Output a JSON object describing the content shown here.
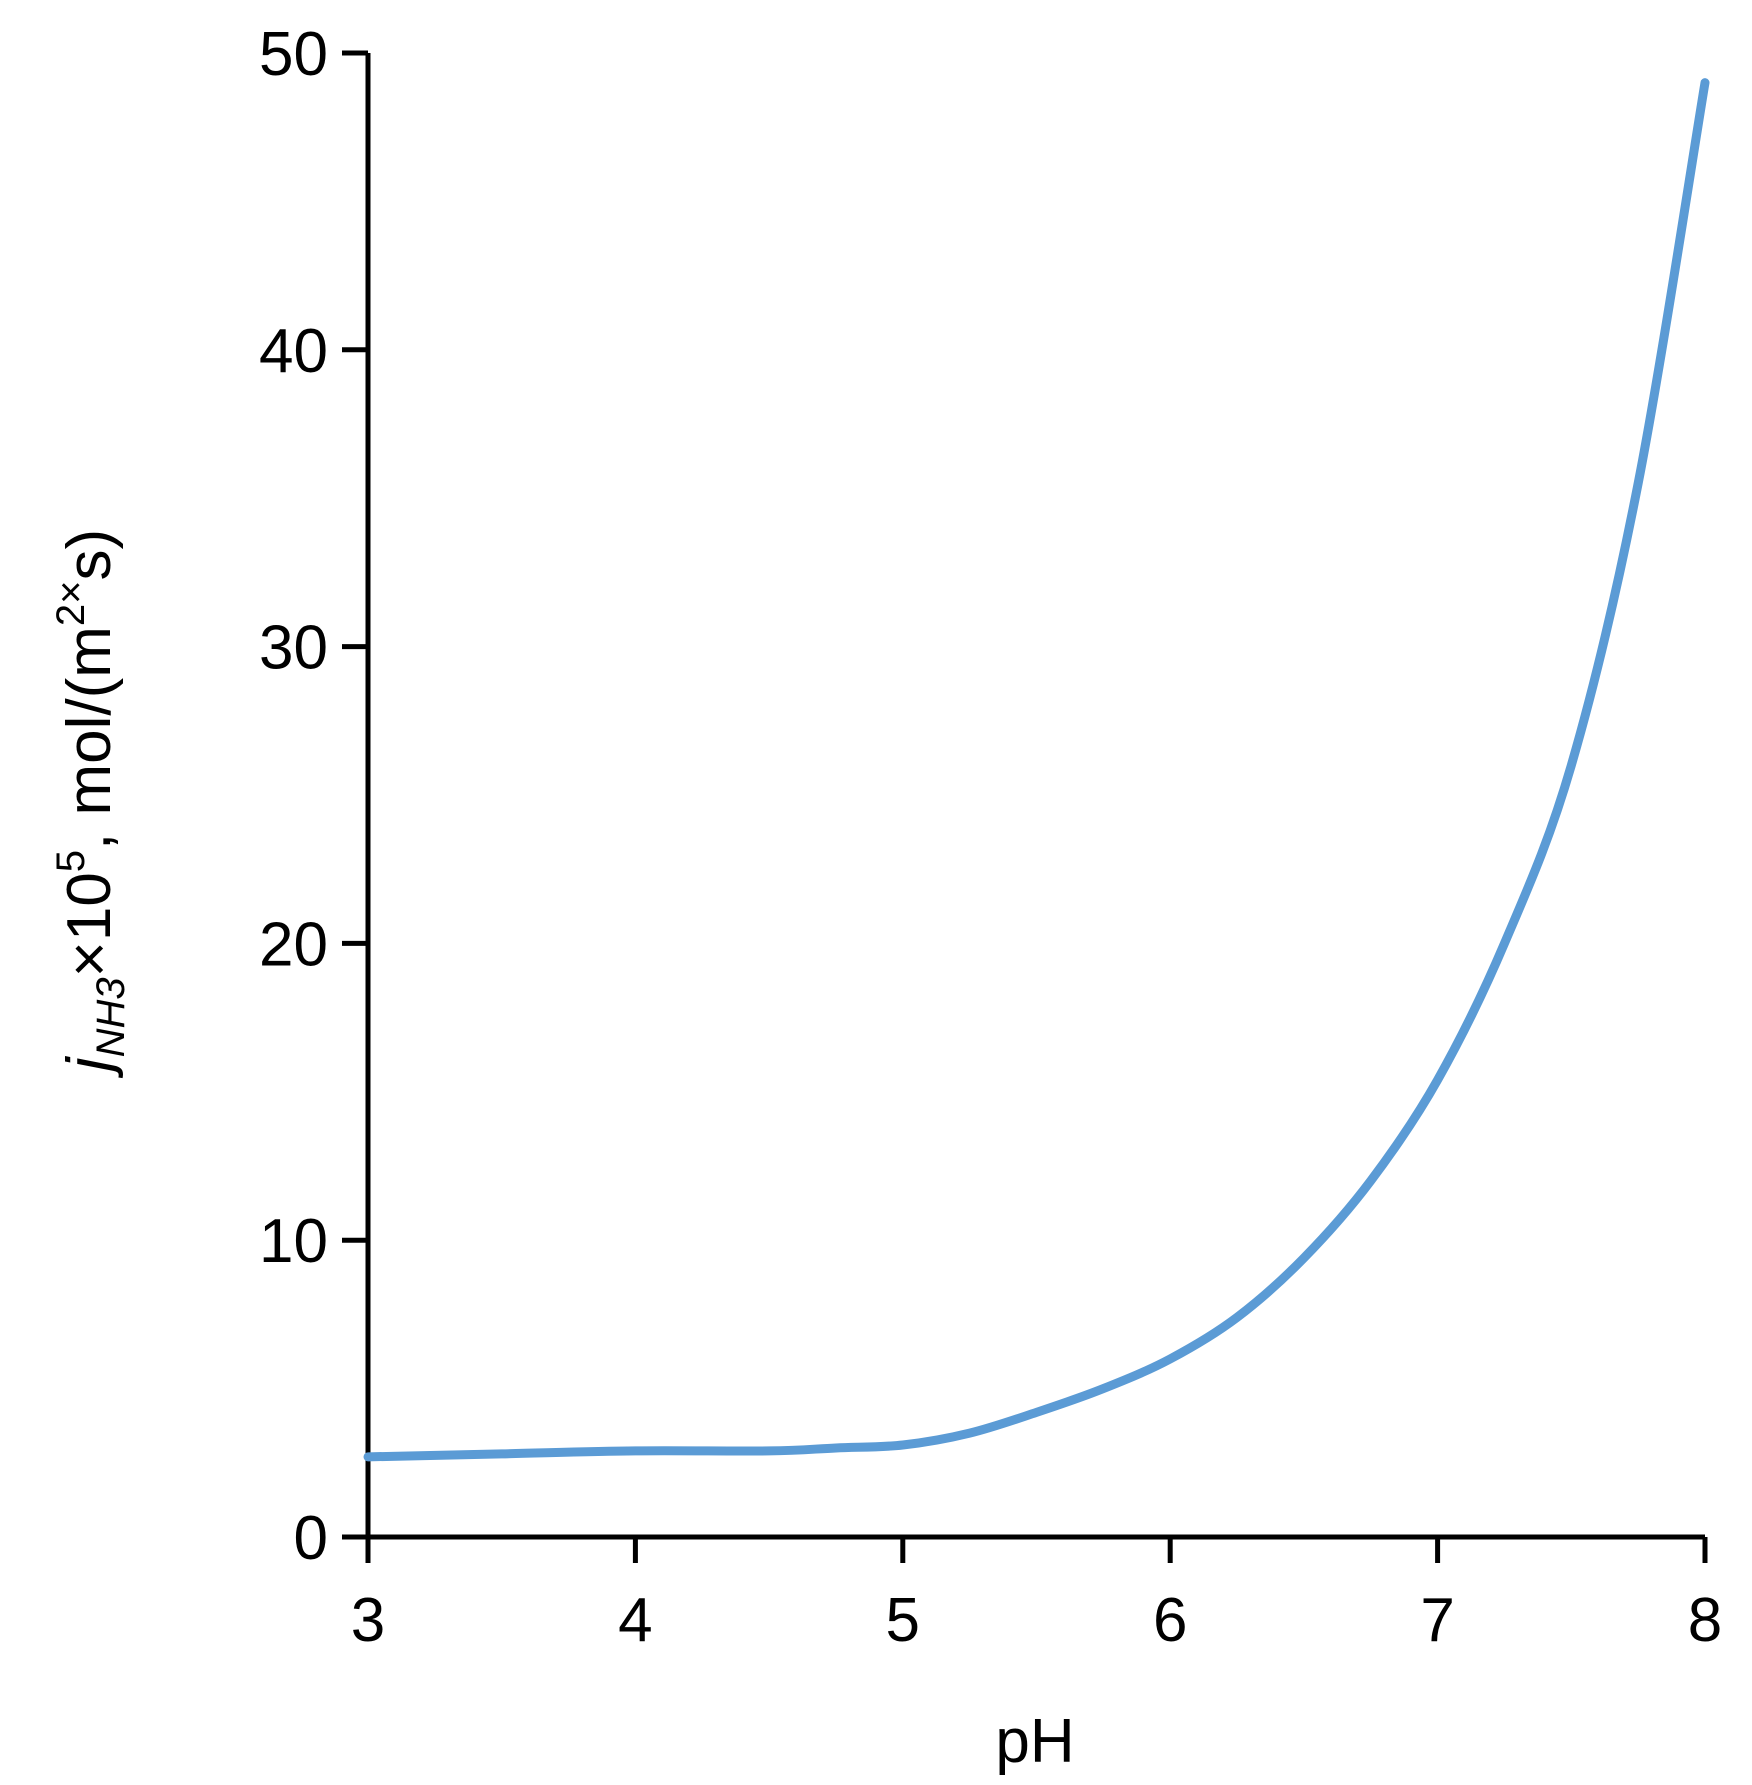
{
  "chart_data": {
    "type": "line",
    "xlabel": "pH",
    "ylabel": {
      "main": "j",
      "subscript": "NH3",
      "times1": "×10",
      "exp": "5",
      "unit_prefix": ", mol/(m",
      "unit_exp": "2×",
      "unit_suffix": "s)"
    },
    "xlim": [
      3,
      8
    ],
    "ylim": [
      0,
      50
    ],
    "x_ticks": [
      3,
      4,
      5,
      6,
      7,
      8
    ],
    "y_ticks": [
      0,
      10,
      20,
      30,
      40,
      50
    ],
    "grid": false,
    "legend": "none",
    "series": [
      {
        "color": "#5b9bd5",
        "x": [
          3.0,
          3.5,
          4.0,
          4.5,
          4.75,
          5.0,
          5.25,
          5.5,
          5.75,
          6.0,
          6.25,
          6.5,
          6.75,
          7.0,
          7.25,
          7.5,
          7.75,
          8.0
        ],
        "y": [
          2.7,
          2.8,
          2.9,
          2.9,
          3.0,
          3.1,
          3.5,
          4.2,
          5.0,
          6.0,
          7.4,
          9.4,
          12.0,
          15.4,
          20.0,
          26.0,
          35.5,
          49.0
        ]
      }
    ]
  }
}
